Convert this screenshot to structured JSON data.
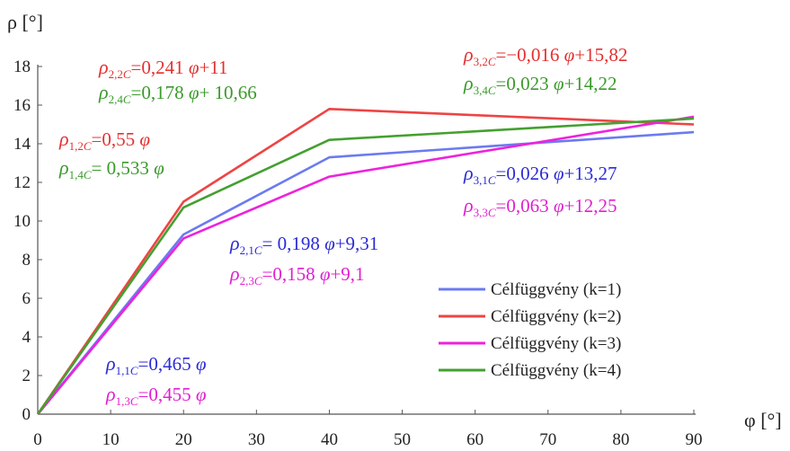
{
  "chart_data": {
    "type": "line",
    "ylabel": "ρ [°]",
    "xlabel": "φ [°]",
    "xlim": [
      0,
      90
    ],
    "ylim": [
      0,
      18
    ],
    "x_ticks": [
      "0",
      "10",
      "20",
      "30",
      "40",
      "50",
      "60",
      "70",
      "80",
      "90"
    ],
    "y_ticks": [
      "0",
      "2",
      "4",
      "6",
      "8",
      "10",
      "12",
      "14",
      "16",
      "18"
    ],
    "grid": false,
    "legend_position": "bottom-right",
    "series": [
      {
        "name": "Célfüggvény (k=1)",
        "color": "#6b7bef",
        "x": [
          0,
          20,
          40,
          90
        ],
        "y": [
          0,
          9.3,
          13.3,
          14.6
        ]
      },
      {
        "name": "Célfüggvény (k=2)",
        "color": "#ee4444",
        "x": [
          0,
          20,
          40,
          90
        ],
        "y": [
          0,
          11.0,
          15.8,
          15.0
        ]
      },
      {
        "name": "Célfüggvény (k=3)",
        "color": "#ee22dd",
        "x": [
          0,
          20,
          40,
          90
        ],
        "y": [
          0,
          9.1,
          12.3,
          15.4
        ]
      },
      {
        "name": "Célfüggvény (k=4)",
        "color": "#44a030",
        "x": [
          0,
          20,
          40,
          90
        ],
        "y": [
          0,
          10.7,
          14.2,
          15.3
        ]
      }
    ],
    "annotations": [
      {
        "id": "rho22",
        "text": "ρ2,2C = 0,241 φ + 11",
        "color": "#e53030"
      },
      {
        "id": "rho24",
        "text": "ρ2,4C = 0,178 φ + 10,66",
        "color": "#3a9a2a"
      },
      {
        "id": "rho12",
        "text": "ρ1,2C = 0,55 φ",
        "color": "#e53030"
      },
      {
        "id": "rho14",
        "text": "ρ1,4C = 0,533 φ",
        "color": "#3a9a2a"
      },
      {
        "id": "rho32",
        "text": "ρ3,2C = −0,016 φ + 15,82",
        "color": "#e53030"
      },
      {
        "id": "rho34",
        "text": "ρ3,4C = 0,023 φ + 14,22",
        "color": "#3a9a2a"
      },
      {
        "id": "rho31",
        "text": "ρ3,1C = 0,026 φ + 13,27",
        "color": "#2b2bd6"
      },
      {
        "id": "rho33",
        "text": "ρ3,3C = 0,063 φ + 12,25",
        "color": "#e020d0"
      },
      {
        "id": "rho21",
        "text": "ρ2,1C = 0,198 φ + 9,31",
        "color": "#2b2bd6"
      },
      {
        "id": "rho23",
        "text": "ρ2,3C = 0,158 φ + 9,1",
        "color": "#e020d0"
      },
      {
        "id": "rho11",
        "text": "ρ1,1C = 0,465 φ",
        "color": "#2b2bd6"
      },
      {
        "id": "rho13",
        "text": "ρ1,3C = 0,455 φ",
        "color": "#e020d0"
      }
    ],
    "equation_parts": {
      "rho22": {
        "sym": "ρ",
        "sub": "2,2",
        "subC": "C",
        "rhs": "=0,241 ",
        "phi": "φ",
        "tail": "+11"
      },
      "rho24": {
        "sym": "ρ",
        "sub": "2,4",
        "subC": "C",
        "rhs": "=0,178 ",
        "phi": "φ",
        "tail": "+ 10,66"
      },
      "rho12": {
        "sym": "ρ",
        "sub": "1,2",
        "subC": "C",
        "rhs": "=0,55 ",
        "phi": "φ",
        "tail": ""
      },
      "rho14": {
        "sym": "ρ",
        "sub": "1,4",
        "subC": "C",
        "rhs": "= 0,533 ",
        "phi": "φ",
        "tail": ""
      },
      "rho32": {
        "sym": "ρ",
        "sub": "3,2",
        "subC": "C",
        "rhs": "=−0,016 ",
        "phi": "φ",
        "tail": "+15,82"
      },
      "rho34": {
        "sym": "ρ",
        "sub": "3,4",
        "subC": "C",
        "rhs": "=0,023 ",
        "phi": "φ",
        "tail": "+14,22"
      },
      "rho31": {
        "sym": "ρ",
        "sub": "3,1",
        "subC": "C",
        "rhs": "=0,026 ",
        "phi": "φ",
        "tail": "+13,27"
      },
      "rho33": {
        "sym": "ρ",
        "sub": "3,3",
        "subC": "C",
        "rhs": "=0,063 ",
        "phi": "φ",
        "tail": "+12,25"
      },
      "rho21": {
        "sym": "ρ",
        "sub": "2,1",
        "subC": "C",
        "rhs": "= 0,198 ",
        "phi": "φ",
        "tail": "+9,31"
      },
      "rho23": {
        "sym": "ρ",
        "sub": "2,3",
        "subC": "C",
        "rhs": "=0,158 ",
        "phi": "φ",
        "tail": "+9,1"
      },
      "rho11": {
        "sym": "ρ",
        "sub": "1,1",
        "subC": "C",
        "rhs": "=0,465 ",
        "phi": "φ",
        "tail": ""
      },
      "rho13": {
        "sym": "ρ",
        "sub": "1,3",
        "subC": "C",
        "rhs": "=0,455 ",
        "phi": "φ",
        "tail": ""
      }
    }
  }
}
